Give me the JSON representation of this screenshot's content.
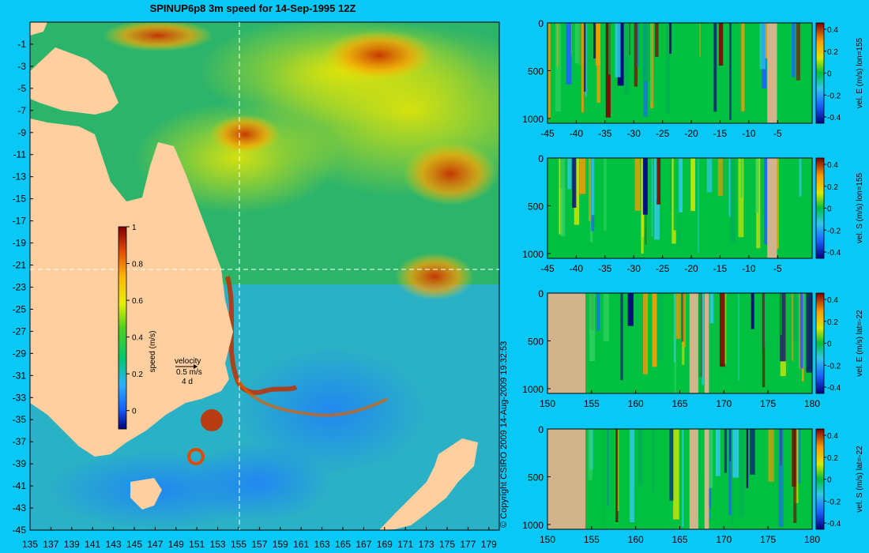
{
  "title": "SPINUP6p8 3m speed for 14-Sep-1995 12Z",
  "copyright": "© Copyright CSIRO 2009   14-Aug-2009 19:32:53",
  "colors": {
    "background": "#0ac8f5",
    "land": "#ffcf9f",
    "section_land": "#d2b48c"
  },
  "chart_data": [
    {
      "type": "heatmap",
      "name": "map",
      "x_ticks": [
        "135",
        "137",
        "139",
        "141",
        "143",
        "145",
        "147",
        "149",
        "151",
        "153",
        "155",
        "157",
        "159",
        "161",
        "163",
        "165",
        "167",
        "169",
        "171",
        "173",
        "175",
        "177",
        "179"
      ],
      "y_ticks": [
        "-1",
        "-3",
        "-5",
        "-7",
        "-9",
        "-11",
        "-13",
        "-15",
        "-17",
        "-19",
        "-21",
        "-23",
        "-25",
        "-27",
        "-29",
        "-31",
        "-33",
        "-35",
        "-37",
        "-39",
        "-41",
        "-43",
        "-45"
      ],
      "xlim": [
        135,
        180
      ],
      "ylim": [
        -45,
        1
      ],
      "crosshair": {
        "lon": 155,
        "lat": -22
      },
      "colorbar": {
        "label": "speed (m/s)",
        "ticks": [
          "1",
          "0.8",
          "0.6",
          "0.4",
          "0.2",
          "0"
        ],
        "range": [
          -0.1,
          1
        ]
      },
      "velocity_key": {
        "label": "velocity",
        "speed": "0.5 m/s",
        "duration": "4 d"
      }
    },
    {
      "type": "heatmap",
      "name": "section-1",
      "x_ticks": [
        "-45",
        "-40",
        "-35",
        "-30",
        "-25",
        "-20",
        "-15",
        "-10",
        "-5"
      ],
      "xlim": [
        -45,
        1
      ],
      "y_ticks": [
        "0",
        "500",
        "1000"
      ],
      "ylim": [
        0,
        1050
      ],
      "colorbar_label": "vel. E (m/s) lon=155",
      "colorbar_ticks": [
        "0.4",
        "0.2",
        "0",
        "-0.2",
        "-0.4"
      ],
      "land_x": [
        [
          -6.8,
          -5.1
        ]
      ]
    },
    {
      "type": "heatmap",
      "name": "section-2",
      "x_ticks": [
        "-45",
        "-40",
        "-35",
        "-30",
        "-25",
        "-20",
        "-15",
        "-10",
        "-5"
      ],
      "xlim": [
        -45,
        1
      ],
      "y_ticks": [
        "0",
        "500",
        "1000"
      ],
      "ylim": [
        0,
        1050
      ],
      "colorbar_label": "vel. S (m/s) lon=155",
      "colorbar_ticks": [
        "0.4",
        "0.2",
        "0",
        "-0.2",
        "-0.4"
      ],
      "land_x": [
        [
          -6.8,
          -5.1
        ]
      ]
    },
    {
      "type": "heatmap",
      "name": "section-3",
      "x_ticks": [
        "150",
        "155",
        "160",
        "165",
        "170",
        "175",
        "180"
      ],
      "xlim": [
        150,
        180
      ],
      "y_ticks": [
        "0",
        "500",
        "1000"
      ],
      "ylim": [
        0,
        1050
      ],
      "colorbar_label": "vel. E (m/s) lat=-22",
      "colorbar_ticks": [
        "0.4",
        "0.2",
        "0",
        "-0.2",
        "-0.4"
      ],
      "land_x": [
        [
          150,
          154.3
        ],
        [
          166.1,
          167.1
        ],
        [
          167.8,
          168.3
        ]
      ]
    },
    {
      "type": "heatmap",
      "name": "section-4",
      "x_ticks": [
        "150",
        "155",
        "160",
        "165",
        "170",
        "175",
        "180"
      ],
      "xlim": [
        150,
        180
      ],
      "y_ticks": [
        "0",
        "500",
        "1000"
      ],
      "ylim": [
        0,
        1050
      ],
      "colorbar_label": "vel. S (m/s) lat=-22",
      "colorbar_ticks": [
        "0.4",
        "0.2",
        "0",
        "-0.2",
        "-0.4"
      ],
      "land_x": [
        [
          150,
          154.3
        ],
        [
          166.1,
          167.1
        ],
        [
          167.8,
          168.3
        ]
      ]
    }
  ]
}
